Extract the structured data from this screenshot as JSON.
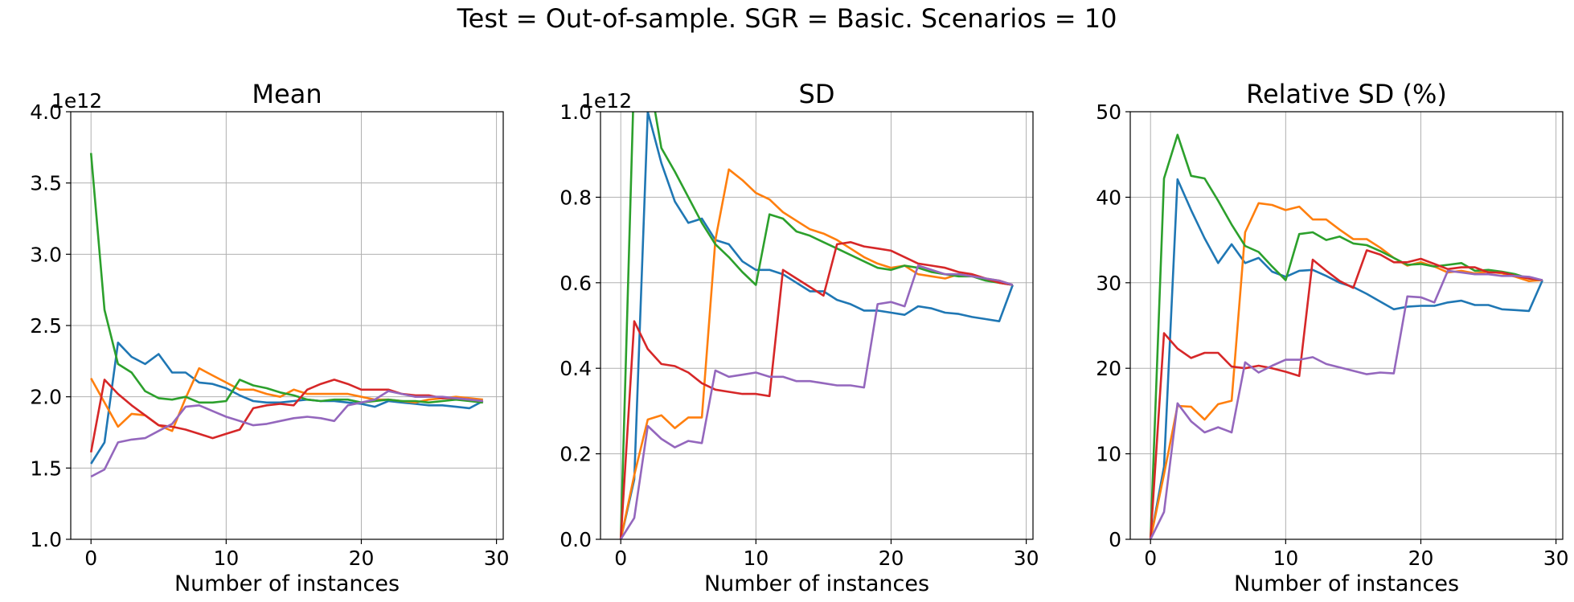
{
  "suptitle": "Test = Out-of-sample. SGR = Basic. Scenarios = 10",
  "chart_data": [
    {
      "type": "line",
      "title": "Mean",
      "xlabel": "Number of instances",
      "ylabel": "",
      "offset_text": "1e12",
      "xlim": [
        -1.5,
        30.5
      ],
      "ylim": [
        1.0,
        4.0
      ],
      "xticks": [
        0,
        10,
        20,
        30
      ],
      "yticks": [
        1.0,
        1.5,
        2.0,
        2.5,
        3.0,
        3.5,
        4.0
      ],
      "ytick_labels": [
        "1.0",
        "1.5",
        "2.0",
        "2.5",
        "3.0",
        "3.5",
        "4.0"
      ],
      "grid": true,
      "x": [
        0,
        1,
        2,
        3,
        4,
        5,
        6,
        7,
        8,
        9,
        10,
        11,
        12,
        13,
        14,
        15,
        16,
        17,
        18,
        19,
        20,
        21,
        22,
        23,
        24,
        25,
        26,
        27,
        28,
        29
      ],
      "series": [
        {
          "color": "#1f77b4",
          "values": [
            1.53,
            1.68,
            2.38,
            2.28,
            2.23,
            2.3,
            2.17,
            2.17,
            2.1,
            2.09,
            2.06,
            2.01,
            1.97,
            1.96,
            1.96,
            1.97,
            1.98,
            1.97,
            1.97,
            1.96,
            1.95,
            1.93,
            1.97,
            1.96,
            1.95,
            1.94,
            1.94,
            1.93,
            1.92,
            1.97
          ]
        },
        {
          "color": "#ff7f0e",
          "values": [
            2.13,
            1.96,
            1.79,
            1.88,
            1.87,
            1.8,
            1.76,
            1.99,
            2.2,
            2.15,
            2.1,
            2.05,
            2.05,
            2.02,
            2.0,
            2.05,
            2.02,
            2.02,
            2.02,
            2.02,
            2.0,
            1.98,
            1.98,
            1.97,
            1.96,
            1.98,
            1.99,
            2.0,
            1.99,
            1.98
          ]
        },
        {
          "color": "#2ca02c",
          "values": [
            3.71,
            2.61,
            2.23,
            2.17,
            2.04,
            1.99,
            1.98,
            2.0,
            1.96,
            1.96,
            1.97,
            2.12,
            2.08,
            2.06,
            2.03,
            2.01,
            1.98,
            1.97,
            1.98,
            1.98,
            1.96,
            1.97,
            1.98,
            1.97,
            1.97,
            1.96,
            1.97,
            1.98,
            1.97,
            1.96
          ]
        },
        {
          "color": "#d62728",
          "values": [
            1.61,
            2.12,
            2.02,
            1.94,
            1.87,
            1.8,
            1.79,
            1.77,
            1.74,
            1.71,
            1.74,
            1.77,
            1.92,
            1.94,
            1.95,
            1.94,
            2.05,
            2.09,
            2.12,
            2.09,
            2.05,
            2.05,
            2.05,
            2.02,
            2.01,
            2.01,
            1.99,
            1.99,
            1.98,
            1.97
          ]
        },
        {
          "color": "#9467bd",
          "values": [
            1.44,
            1.49,
            1.68,
            1.7,
            1.71,
            1.76,
            1.81,
            1.93,
            1.94,
            1.9,
            1.86,
            1.83,
            1.8,
            1.81,
            1.83,
            1.85,
            1.86,
            1.85,
            1.83,
            1.94,
            1.96,
            1.98,
            2.04,
            2.02,
            2.0,
            2.0,
            2.0,
            1.99,
            1.98,
            1.97
          ]
        }
      ]
    },
    {
      "type": "line",
      "title": "SD",
      "xlabel": "Number of instances",
      "ylabel": "",
      "offset_text": "1e12",
      "xlim": [
        -1.5,
        30.5
      ],
      "ylim": [
        0.0,
        1.0
      ],
      "xticks": [
        0,
        10,
        20,
        30
      ],
      "yticks": [
        0.0,
        0.2,
        0.4,
        0.6,
        0.8,
        1.0
      ],
      "ytick_labels": [
        "0.0",
        "0.2",
        "0.4",
        "0.6",
        "0.8",
        "1.0"
      ],
      "grid": true,
      "x": [
        0,
        1,
        2,
        3,
        4,
        5,
        6,
        7,
        8,
        9,
        10,
        11,
        12,
        13,
        14,
        15,
        16,
        17,
        18,
        19,
        20,
        21,
        22,
        23,
        24,
        25,
        26,
        27,
        28,
        29
      ],
      "series": [
        {
          "color": "#1f77b4",
          "values": [
            0.0,
            0.14,
            1.0,
            0.88,
            0.79,
            0.74,
            0.75,
            0.7,
            0.69,
            0.65,
            0.63,
            0.63,
            0.62,
            0.6,
            0.58,
            0.58,
            0.56,
            0.55,
            0.535,
            0.535,
            0.53,
            0.525,
            0.545,
            0.54,
            0.53,
            0.527,
            0.52,
            0.515,
            0.51,
            0.595
          ]
        },
        {
          "color": "#ff7f0e",
          "values": [
            0.0,
            0.15,
            0.28,
            0.29,
            0.26,
            0.285,
            0.285,
            0.7,
            0.865,
            0.84,
            0.81,
            0.795,
            0.765,
            0.745,
            0.725,
            0.715,
            0.7,
            0.68,
            0.66,
            0.645,
            0.635,
            0.64,
            0.62,
            0.615,
            0.61,
            0.62,
            0.615,
            0.61,
            0.605,
            0.595
          ]
        },
        {
          "color": "#2ca02c",
          "values": [
            0.0,
            1.1,
            1.1,
            0.915,
            0.86,
            0.8,
            0.74,
            0.69,
            0.66,
            0.625,
            0.595,
            0.76,
            0.75,
            0.72,
            0.71,
            0.695,
            0.68,
            0.665,
            0.65,
            0.635,
            0.63,
            0.64,
            0.635,
            0.625,
            0.62,
            0.615,
            0.615,
            0.605,
            0.6,
            0.595
          ]
        },
        {
          "color": "#d62728",
          "values": [
            0.0,
            0.51,
            0.445,
            0.41,
            0.405,
            0.39,
            0.365,
            0.35,
            0.345,
            0.34,
            0.34,
            0.335,
            0.63,
            0.61,
            0.59,
            0.57,
            0.69,
            0.695,
            0.685,
            0.68,
            0.675,
            0.66,
            0.645,
            0.64,
            0.635,
            0.625,
            0.62,
            0.61,
            0.6,
            0.595
          ]
        },
        {
          "color": "#9467bd",
          "values": [
            0.0,
            0.05,
            0.265,
            0.235,
            0.215,
            0.23,
            0.225,
            0.395,
            0.38,
            0.385,
            0.39,
            0.38,
            0.38,
            0.37,
            0.37,
            0.365,
            0.36,
            0.36,
            0.355,
            0.55,
            0.555,
            0.545,
            0.64,
            0.63,
            0.62,
            0.62,
            0.615,
            0.61,
            0.605,
            0.595
          ]
        }
      ]
    },
    {
      "type": "line",
      "title": "Relative SD (%)",
      "xlabel": "Number of instances",
      "ylabel": "",
      "offset_text": "",
      "xlim": [
        -1.5,
        30.5
      ],
      "ylim": [
        0,
        50
      ],
      "xticks": [
        0,
        10,
        20,
        30
      ],
      "yticks": [
        0,
        10,
        20,
        30,
        40,
        50
      ],
      "ytick_labels": [
        "0",
        "10",
        "20",
        "30",
        "40",
        "50"
      ],
      "grid": true,
      "x": [
        0,
        1,
        2,
        3,
        4,
        5,
        6,
        7,
        8,
        9,
        10,
        11,
        12,
        13,
        14,
        15,
        16,
        17,
        18,
        19,
        20,
        21,
        22,
        23,
        24,
        25,
        26,
        27,
        28,
        29
      ],
      "series": [
        {
          "color": "#1f77b4",
          "values": [
            0,
            8.5,
            42.1,
            38.5,
            35.2,
            32.3,
            34.5,
            32.3,
            32.9,
            31.3,
            30.7,
            31.4,
            31.5,
            30.8,
            30.0,
            29.5,
            28.7,
            27.8,
            26.9,
            27.2,
            27.3,
            27.3,
            27.7,
            27.9,
            27.4,
            27.4,
            26.9,
            26.8,
            26.7,
            30.3
          ]
        },
        {
          "color": "#ff7f0e",
          "values": [
            0,
            7.6,
            15.6,
            15.5,
            14.0,
            15.8,
            16.2,
            35.9,
            39.3,
            39.1,
            38.5,
            38.9,
            37.4,
            37.4,
            36.2,
            35.1,
            35.1,
            34.1,
            32.9,
            32.0,
            32.4,
            31.9,
            31.2,
            31.4,
            31.1,
            31.3,
            31.1,
            30.7,
            30.2,
            30.3
          ]
        },
        {
          "color": "#2ca02c",
          "values": [
            0,
            42.2,
            47.3,
            42.5,
            42.2,
            39.6,
            36.8,
            34.3,
            33.6,
            31.9,
            30.3,
            35.7,
            35.9,
            35.0,
            35.4,
            34.6,
            34.4,
            33.7,
            32.9,
            32.1,
            32.2,
            31.9,
            32.1,
            32.3,
            31.4,
            31.5,
            31.3,
            31.0,
            30.5,
            30.3
          ]
        },
        {
          "color": "#d62728",
          "values": [
            0,
            24.1,
            22.3,
            21.2,
            21.8,
            21.8,
            20.2,
            20.0,
            20.3,
            20.0,
            19.6,
            19.1,
            32.7,
            31.4,
            30.2,
            29.4,
            33.8,
            33.3,
            32.4,
            32.4,
            32.8,
            32.2,
            31.6,
            31.8,
            31.8,
            31.2,
            31.2,
            30.8,
            30.5,
            30.3
          ]
        },
        {
          "color": "#9467bd",
          "values": [
            0,
            3.2,
            15.9,
            13.8,
            12.5,
            13.1,
            12.5,
            20.7,
            19.5,
            20.3,
            21.0,
            21.0,
            21.3,
            20.5,
            20.1,
            19.7,
            19.3,
            19.5,
            19.4,
            28.4,
            28.3,
            27.7,
            31.4,
            31.2,
            31.0,
            31.0,
            30.8,
            30.8,
            30.7,
            30.3
          ]
        }
      ]
    }
  ]
}
